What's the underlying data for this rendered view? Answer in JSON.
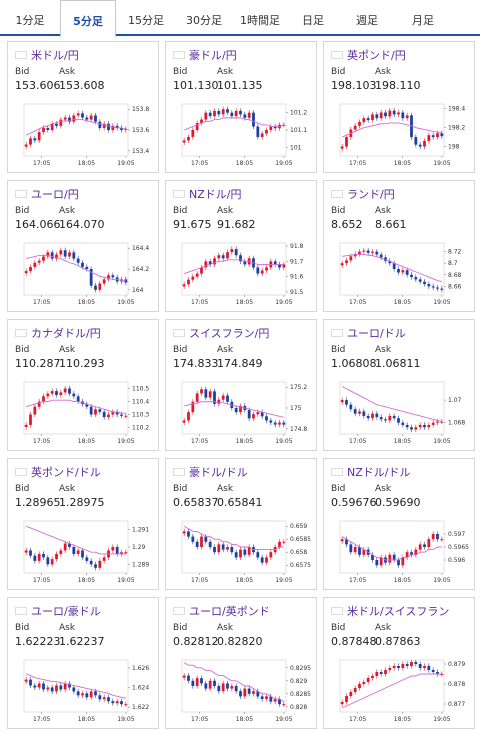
{
  "tabs": [
    {
      "label": "1分足",
      "active": false
    },
    {
      "label": "5分足",
      "active": true
    },
    {
      "label": "15分足",
      "active": false
    },
    {
      "label": "30分足",
      "active": false
    },
    {
      "label": "1時間足",
      "active": false
    },
    {
      "label": "日足",
      "active": false
    },
    {
      "label": "週足",
      "active": false
    },
    {
      "label": "月足",
      "active": false
    }
  ],
  "labels": {
    "bid": "Bid",
    "ask": "Ask"
  },
  "colors": {
    "up": "#e0182d",
    "down": "#1c3fa0",
    "ma": "#d46ad8",
    "accent": "#1e4ea8",
    "pair": "#5a2a9e"
  },
  "cards": [
    {
      "pair": "米ドル/円",
      "flag": "us",
      "bid": "153.606",
      "ask": "153.608",
      "chart": {
        "yticks": [
          "153.8",
          "153.6",
          "153.4"
        ],
        "xticks": [
          "17:05",
          "18:05",
          "19:05"
        ],
        "ylim": [
          153.35,
          153.85
        ],
        "closes": [
          153.46,
          153.52,
          153.5,
          153.58,
          153.62,
          153.6,
          153.66,
          153.64,
          153.7,
          153.72,
          153.68,
          153.74,
          153.76,
          153.72,
          153.7,
          153.74,
          153.68,
          153.62,
          153.66,
          153.6,
          153.64,
          153.62,
          153.6,
          153.61
        ],
        "ma": [
          153.55,
          153.57,
          153.59,
          153.61,
          153.63,
          153.64,
          153.66,
          153.67,
          153.68,
          153.69,
          153.69,
          153.7,
          153.7,
          153.7,
          153.69,
          153.68,
          153.67,
          153.66,
          153.65,
          153.64,
          153.63,
          153.62,
          153.62,
          153.61
        ]
      }
    },
    {
      "pair": "豪ドル/円",
      "flag": "au",
      "bid": "101.130",
      "ask": "101.135",
      "chart": {
        "yticks": [
          "101.2",
          "101.1",
          "101"
        ],
        "xticks": [
          "17:05",
          "18:05",
          "19:05"
        ],
        "ylim": [
          100.95,
          101.25
        ],
        "closes": [
          101.04,
          101.06,
          101.1,
          101.14,
          101.16,
          101.2,
          101.18,
          101.21,
          101.19,
          101.22,
          101.2,
          101.18,
          101.21,
          101.19,
          101.17,
          101.2,
          101.12,
          101.06,
          101.08,
          101.1,
          101.12,
          101.11,
          101.13,
          101.13
        ],
        "ma": [
          101.1,
          101.11,
          101.12,
          101.13,
          101.14,
          101.15,
          101.15,
          101.16,
          101.16,
          101.17,
          101.17,
          101.17,
          101.17,
          101.17,
          101.16,
          101.16,
          101.15,
          101.14,
          101.13,
          101.13,
          101.12,
          101.12,
          101.12,
          101.13
        ]
      }
    },
    {
      "pair": "英ポンド/円",
      "flag": "gb",
      "bid": "198.103",
      "ask": "198.110",
      "chart": {
        "yticks": [
          "198.4",
          "198.2",
          "198"
        ],
        "xticks": [
          "17:05",
          "18:05",
          "19:05"
        ],
        "ylim": [
          197.9,
          198.45
        ],
        "closes": [
          198.0,
          198.1,
          198.18,
          198.22,
          198.26,
          198.3,
          198.28,
          198.34,
          198.3,
          198.36,
          198.32,
          198.38,
          198.34,
          198.36,
          198.3,
          198.33,
          198.1,
          198.02,
          198.0,
          198.06,
          198.12,
          198.1,
          198.14,
          198.11
        ],
        "ma": [
          198.1,
          198.12,
          198.14,
          198.16,
          198.18,
          198.2,
          198.21,
          198.22,
          198.23,
          198.24,
          198.24,
          198.25,
          198.25,
          198.25,
          198.24,
          198.23,
          198.22,
          198.2,
          198.19,
          198.18,
          198.17,
          198.16,
          198.15,
          198.15
        ]
      }
    },
    {
      "pair": "ユーロ/円",
      "flag": "eu",
      "bid": "164.066",
      "ask": "164.070",
      "chart": {
        "yticks": [
          "164.4",
          "164.2",
          "164"
        ],
        "xticks": [
          "17:05",
          "18:05",
          "19:05"
        ],
        "ylim": [
          163.95,
          164.45
        ],
        "closes": [
          164.18,
          164.22,
          164.26,
          164.28,
          164.32,
          164.36,
          164.3,
          164.34,
          164.38,
          164.32,
          164.36,
          164.3,
          164.26,
          164.22,
          164.2,
          164.04,
          164.0,
          164.06,
          164.1,
          164.14,
          164.12,
          164.08,
          164.1,
          164.07
        ],
        "ma": [
          164.3,
          164.31,
          164.32,
          164.33,
          164.33,
          164.33,
          164.32,
          164.31,
          164.3,
          164.28,
          164.26,
          164.25,
          164.23,
          164.21,
          164.19,
          164.17,
          164.15,
          164.13,
          164.12,
          164.11,
          164.1,
          164.1,
          164.09,
          164.09
        ]
      }
    },
    {
      "pair": "NZドル/円",
      "flag": "nz",
      "bid": "91.675",
      "ask": "91.682",
      "chart": {
        "yticks": [
          "91.8",
          "91.7",
          "91.6",
          "91.5"
        ],
        "xticks": [
          "17:05",
          "18:05",
          "19:05"
        ],
        "ylim": [
          91.48,
          91.82
        ],
        "closes": [
          91.55,
          91.58,
          91.6,
          91.62,
          91.66,
          91.7,
          91.68,
          91.72,
          91.74,
          91.72,
          91.76,
          91.78,
          91.74,
          91.7,
          91.68,
          91.72,
          91.66,
          91.62,
          91.64,
          91.66,
          91.7,
          91.68,
          91.66,
          91.68
        ],
        "ma": [
          91.62,
          91.63,
          91.64,
          91.65,
          91.66,
          91.67,
          91.68,
          91.69,
          91.7,
          91.7,
          91.71,
          91.71,
          91.71,
          91.71,
          91.7,
          91.7,
          91.69,
          91.68,
          91.68,
          91.68,
          91.68,
          91.68,
          91.68,
          91.68
        ]
      }
    },
    {
      "pair": "ランド/円",
      "flag": "za",
      "bid": "8.652",
      "ask": "8.661",
      "chart": {
        "yticks": [
          "8.72",
          "8.7",
          "8.68",
          "8.66"
        ],
        "xticks": [
          "17:05",
          "18:05",
          "19:05"
        ],
        "ylim": [
          8.645,
          8.735
        ],
        "closes": [
          8.7,
          8.705,
          8.712,
          8.716,
          8.72,
          8.722,
          8.718,
          8.72,
          8.715,
          8.71,
          8.704,
          8.7,
          8.69,
          8.684,
          8.688,
          8.68,
          8.676,
          8.672,
          8.668,
          8.664,
          8.66,
          8.658,
          8.656,
          8.654
        ],
        "ma": [
          8.712,
          8.713,
          8.714,
          8.715,
          8.715,
          8.715,
          8.714,
          8.713,
          8.711,
          8.709,
          8.706,
          8.703,
          8.7,
          8.697,
          8.694,
          8.691,
          8.688,
          8.685,
          8.682,
          8.679,
          8.676,
          8.673,
          8.67,
          8.668
        ]
      }
    },
    {
      "pair": "カナダドル/円",
      "flag": "ca",
      "bid": "110.287",
      "ask": "110.293",
      "chart": {
        "yticks": [
          "110.5",
          "110.4",
          "110.3",
          "110.2"
        ],
        "xticks": [
          "17:05",
          "18:05",
          "19:05"
        ],
        "ylim": [
          110.15,
          110.55
        ],
        "closes": [
          110.22,
          110.3,
          110.36,
          110.4,
          110.44,
          110.46,
          110.48,
          110.45,
          110.47,
          110.5,
          110.46,
          110.44,
          110.4,
          110.38,
          110.36,
          110.3,
          110.34,
          110.32,
          110.28,
          110.3,
          110.32,
          110.3,
          110.29,
          110.29
        ],
        "ma": [
          110.36,
          110.37,
          110.38,
          110.39,
          110.4,
          110.4,
          110.41,
          110.41,
          110.41,
          110.41,
          110.41,
          110.4,
          110.4,
          110.39,
          110.38,
          110.37,
          110.36,
          110.35,
          110.34,
          110.33,
          110.32,
          110.32,
          110.31,
          110.31
        ]
      }
    },
    {
      "pair": "スイスフラン/円",
      "flag": "ch",
      "bid": "174.833",
      "ask": "174.849",
      "chart": {
        "yticks": [
          "175.2",
          "175",
          "174.8"
        ],
        "xticks": [
          "17:05",
          "18:05",
          "19:05"
        ],
        "ylim": [
          174.75,
          175.25
        ],
        "closes": [
          174.88,
          174.96,
          175.06,
          175.14,
          175.18,
          175.1,
          175.16,
          175.04,
          175.08,
          175.12,
          175.06,
          175.0,
          174.96,
          175.02,
          174.98,
          174.9,
          174.94,
          174.96,
          174.92,
          174.88,
          174.86,
          174.84,
          174.86,
          174.84
        ],
        "ma": [
          175.02,
          175.03,
          175.04,
          175.05,
          175.06,
          175.06,
          175.06,
          175.06,
          175.05,
          175.05,
          175.04,
          175.03,
          175.02,
          175.01,
          175.0,
          174.99,
          174.98,
          174.97,
          174.96,
          174.95,
          174.94,
          174.93,
          174.92,
          174.91
        ]
      }
    },
    {
      "pair": "ユーロ/ドル",
      "flag": "eu",
      "bid": "1.06808",
      "ask": "1.06811",
      "chart": {
        "yticks": [
          "1.07",
          "1.068"
        ],
        "xticks": [
          "17:05",
          "18:05",
          "19:05"
        ],
        "ylim": [
          1.067,
          1.0716
        ],
        "closes": [
          1.07,
          1.0696,
          1.0692,
          1.0688,
          1.069,
          1.0686,
          1.0684,
          1.0688,
          1.0685,
          1.0683,
          1.0682,
          1.0686,
          1.0684,
          1.068,
          1.0678,
          1.0676,
          1.0674,
          1.0676,
          1.0678,
          1.0676,
          1.0678,
          1.068,
          1.0681,
          1.0681
        ],
        "ma": [
          1.0712,
          1.071,
          1.0708,
          1.0706,
          1.0704,
          1.0702,
          1.07,
          1.0698,
          1.0696,
          1.0695,
          1.0694,
          1.0693,
          1.0692,
          1.0691,
          1.069,
          1.0689,
          1.0688,
          1.0687,
          1.0686,
          1.0685,
          1.0684,
          1.0683,
          1.0682,
          1.0681
        ]
      }
    },
    {
      "pair": "英ポンド/ドル",
      "flag": "gb",
      "bid": "1.28965",
      "ask": "1.28975",
      "chart": {
        "yticks": [
          "1.291",
          "1.29",
          "1.289"
        ],
        "xticks": [
          "17:05",
          "18:05",
          "19:05"
        ],
        "ylim": [
          1.2885,
          1.2915
        ],
        "closes": [
          1.2898,
          1.2895,
          1.2892,
          1.2896,
          1.2894,
          1.289,
          1.2893,
          1.2896,
          1.2898,
          1.2902,
          1.29,
          1.2896,
          1.2898,
          1.2894,
          1.2892,
          1.289,
          1.2888,
          1.2892,
          1.2894,
          1.2898,
          1.29,
          1.2896,
          1.2897,
          1.2897
        ],
        "ma": [
          1.2912,
          1.2911,
          1.291,
          1.2909,
          1.2908,
          1.2907,
          1.2906,
          1.2905,
          1.2904,
          1.2903,
          1.2902,
          1.2901,
          1.29,
          1.2899,
          1.2898,
          1.2897,
          1.2897,
          1.2896,
          1.2896,
          1.2896,
          1.2896,
          1.2896,
          1.2896,
          1.2896
        ]
      }
    },
    {
      "pair": "豪ドル/ドル",
      "flag": "au",
      "bid": "0.65837",
      "ask": "0.65841",
      "chart": {
        "yticks": [
          "0.659",
          "0.6585",
          "0.658",
          "0.6575"
        ],
        "xticks": [
          "17:05",
          "18:05",
          "19:05"
        ],
        "ylim": [
          0.6572,
          0.6592
        ],
        "closes": [
          0.6588,
          0.6586,
          0.6584,
          0.6582,
          0.6586,
          0.6584,
          0.6582,
          0.658,
          0.6583,
          0.6581,
          0.6582,
          0.658,
          0.6578,
          0.6581,
          0.6579,
          0.6582,
          0.658,
          0.6578,
          0.6576,
          0.6578,
          0.658,
          0.6582,
          0.6584,
          0.6584
        ],
        "ma": [
          0.659,
          0.6589,
          0.6588,
          0.6588,
          0.6587,
          0.6586,
          0.6586,
          0.6585,
          0.6585,
          0.6584,
          0.6584,
          0.6583,
          0.6583,
          0.6582,
          0.6582,
          0.6582,
          0.6581,
          0.6581,
          0.6581,
          0.6581,
          0.6581,
          0.6581,
          0.6582,
          0.6582
        ]
      }
    },
    {
      "pair": "NZドル/ドル",
      "flag": "nz",
      "bid": "0.59676",
      "ask": "0.59690",
      "chart": {
        "yticks": [
          "0.597",
          "0.5965",
          "0.596"
        ],
        "xticks": [
          "17:05",
          "18:05",
          "19:05"
        ],
        "ylim": [
          0.5955,
          0.5975
        ],
        "closes": [
          0.5968,
          0.5966,
          0.5963,
          0.5965,
          0.5962,
          0.5964,
          0.5962,
          0.596,
          0.5958,
          0.5961,
          0.5959,
          0.5962,
          0.596,
          0.5958,
          0.5961,
          0.5963,
          0.5962,
          0.5964,
          0.5966,
          0.5965,
          0.5968,
          0.597,
          0.5968,
          0.5968
        ],
        "ma": [
          0.5969,
          0.5968,
          0.5967,
          0.5966,
          0.5965,
          0.5964,
          0.5963,
          0.5962,
          0.5961,
          0.5961,
          0.596,
          0.596,
          0.596,
          0.596,
          0.5961,
          0.5961,
          0.5962,
          0.5962,
          0.5963,
          0.5963,
          0.5964,
          0.5964,
          0.5965,
          0.5965
        ]
      }
    },
    {
      "pair": "ユーロ/豪ドル",
      "flag": "eu",
      "bid": "1.62223",
      "ask": "1.62237",
      "chart": {
        "yticks": [
          "1.626",
          "1.624",
          "1.622"
        ],
        "xticks": [
          "17:05",
          "18:05",
          "19:05"
        ],
        "ylim": [
          1.6215,
          1.6268
        ],
        "closes": [
          1.6248,
          1.6242,
          1.624,
          1.6244,
          1.6238,
          1.624,
          1.6236,
          1.6242,
          1.6238,
          1.6244,
          1.624,
          1.6236,
          1.6232,
          1.6234,
          1.623,
          1.6236,
          1.6232,
          1.6228,
          1.623,
          1.6226,
          1.6224,
          1.6226,
          1.6223,
          1.6223
        ],
        "ma": [
          1.6254,
          1.6252,
          1.625,
          1.6249,
          1.6248,
          1.6247,
          1.6246,
          1.6246,
          1.6245,
          1.6244,
          1.6243,
          1.6242,
          1.6241,
          1.624,
          1.6239,
          1.6238,
          1.6237,
          1.6236,
          1.6235,
          1.6234,
          1.6232,
          1.6231,
          1.623,
          1.6229
        ]
      }
    },
    {
      "pair": "ユーロ/英ポンド",
      "flag": "eu",
      "bid": "0.82812",
      "ask": "0.82820",
      "chart": {
        "yticks": [
          "0.8295",
          "0.829",
          "0.8285",
          "0.828"
        ],
        "xticks": [
          "17:05",
          "18:05",
          "19:05"
        ],
        "ylim": [
          0.8278,
          0.8298
        ],
        "closes": [
          0.8292,
          0.829,
          0.8288,
          0.8291,
          0.8289,
          0.8287,
          0.829,
          0.8288,
          0.8286,
          0.8289,
          0.8287,
          0.8288,
          0.8286,
          0.8284,
          0.8287,
          0.8285,
          0.8286,
          0.8284,
          0.8283,
          0.8284,
          0.8282,
          0.8283,
          0.8281,
          0.8281
        ],
        "ma": [
          0.8297,
          0.8296,
          0.8296,
          0.8295,
          0.8295,
          0.8294,
          0.8294,
          0.8293,
          0.8292,
          0.8292,
          0.8291,
          0.829,
          0.829,
          0.8289,
          0.8288,
          0.8288,
          0.8287,
          0.8286,
          0.8285,
          0.8285,
          0.8284,
          0.8283,
          0.8283,
          0.8282
        ]
      }
    },
    {
      "pair": "米ドル/スイスフラン",
      "flag": "us",
      "bid": "0.87848",
      "ask": "0.87863",
      "chart": {
        "yticks": [
          "0.879",
          "0.878",
          "0.877"
        ],
        "xticks": [
          "17:05",
          "18:05",
          "19:05"
        ],
        "ylim": [
          0.8766,
          0.8792
        ],
        "closes": [
          0.8771,
          0.8774,
          0.8776,
          0.8778,
          0.878,
          0.8781,
          0.8783,
          0.8784,
          0.8786,
          0.8785,
          0.8787,
          0.8788,
          0.8789,
          0.8788,
          0.879,
          0.8789,
          0.8791,
          0.879,
          0.8788,
          0.8789,
          0.8787,
          0.8786,
          0.8785,
          0.8785
        ],
        "ma": [
          0.8768,
          0.8769,
          0.877,
          0.8771,
          0.8772,
          0.8773,
          0.8774,
          0.8775,
          0.8776,
          0.8777,
          0.8778,
          0.8779,
          0.878,
          0.8781,
          0.8782,
          0.8783,
          0.8784,
          0.8784,
          0.8785,
          0.8785,
          0.8785,
          0.8785,
          0.8785,
          0.8785
        ]
      }
    }
  ]
}
